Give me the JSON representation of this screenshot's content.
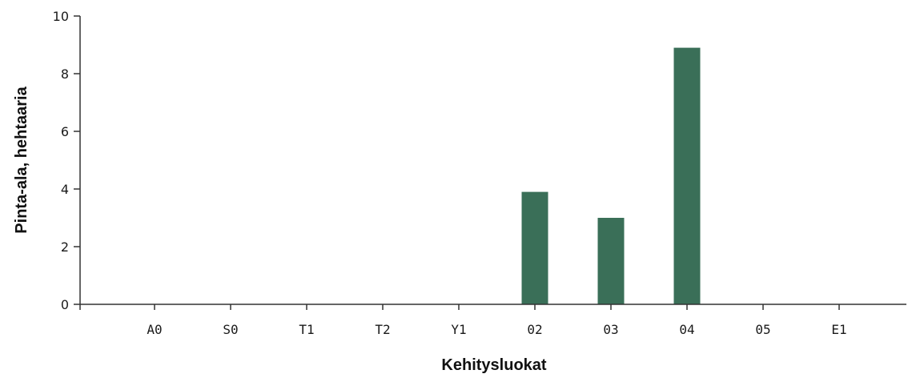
{
  "chart_data": {
    "type": "bar",
    "categories": [
      "A0",
      "S0",
      "T1",
      "T2",
      "Y1",
      "02",
      "03",
      "04",
      "05",
      "E1"
    ],
    "values": [
      0,
      0,
      0,
      0,
      0,
      3.9,
      3.0,
      8.9,
      0,
      0
    ],
    "xlabel": "Kehitysluokat",
    "ylabel": "Pinta-ala, hehtaaria",
    "ylim": [
      0,
      10
    ],
    "yticks": [
      0,
      2,
      4,
      6,
      8,
      10
    ],
    "bar_color": "#3a6f58",
    "grid": false,
    "legend": "none"
  }
}
